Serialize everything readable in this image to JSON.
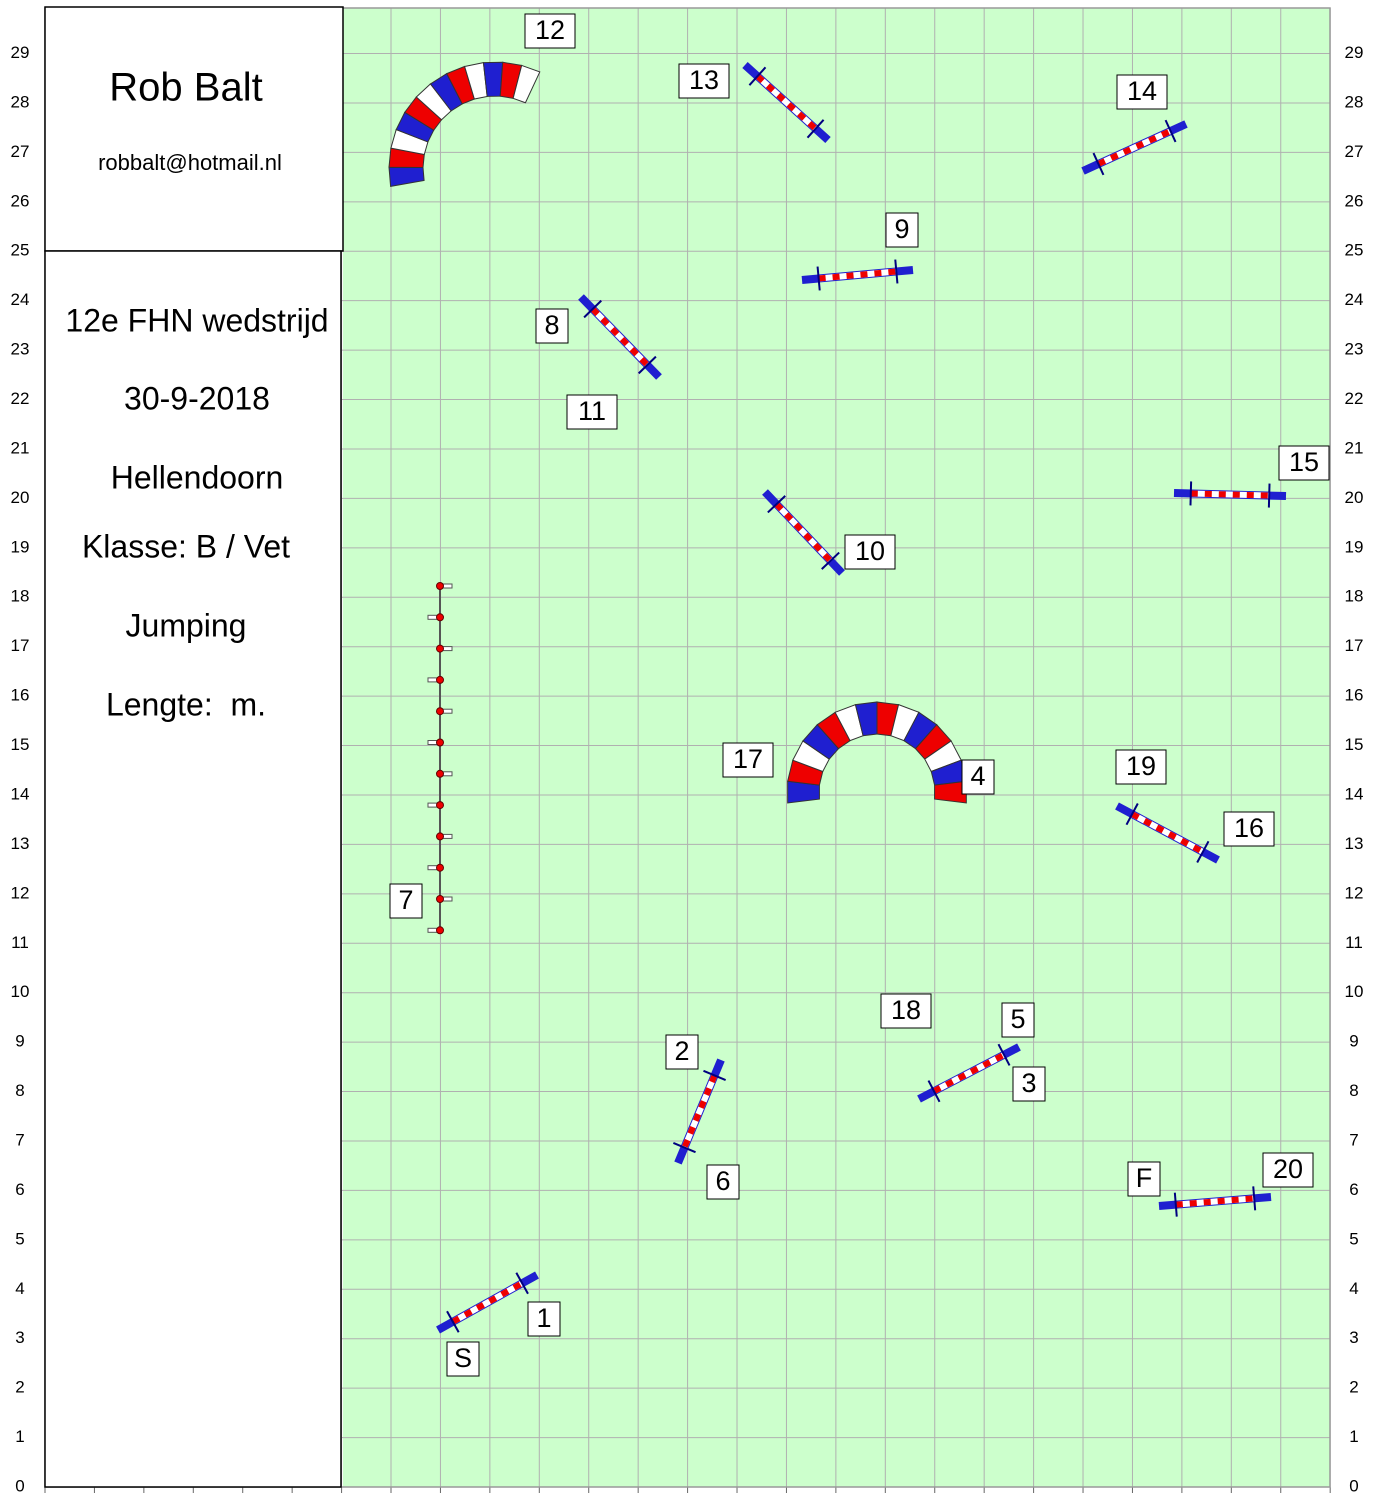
{
  "header": {
    "name": "Rob Balt",
    "email": "robbalt@hotmail.nl"
  },
  "info": {
    "event": "12e FHN wedstrijd",
    "date": "30-9-2018",
    "place": "Hellendoorn",
    "class": "Klasse: B / Vet",
    "discipline": "Jumping",
    "length": "Lengte:  m."
  },
  "y_axis_labels": [
    0,
    1,
    2,
    3,
    4,
    5,
    6,
    7,
    8,
    9,
    10,
    11,
    12,
    13,
    14,
    15,
    16,
    17,
    18,
    19,
    20,
    21,
    22,
    23,
    24,
    25,
    26,
    27,
    28,
    29
  ],
  "obstacle_labels": [
    "12",
    "13",
    "14",
    "9",
    "8",
    "11",
    "15",
    "10",
    "17",
    "4",
    "19",
    "16",
    "7",
    "18",
    "5",
    "2",
    "3",
    "6",
    "F",
    "20",
    "1",
    "S"
  ]
}
